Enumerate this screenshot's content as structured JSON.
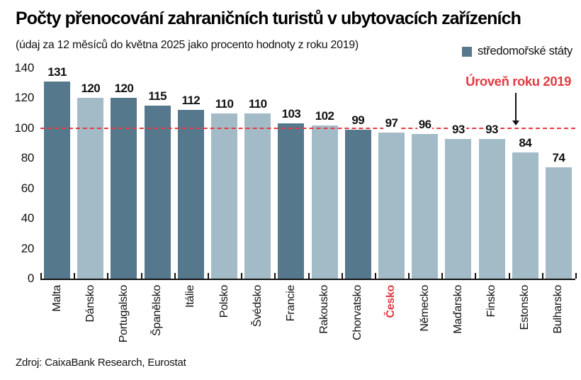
{
  "header": {
    "title": "Počty přenocování zahraničních turistů v ubytovacích zařízeních",
    "subtitle": "(údaj za 12 měsíců do května 2025 jako procento hodnoty z roku 2019)"
  },
  "source": {
    "label": "Zdroj: CaixaBank Research, Eurostat"
  },
  "colors": {
    "mediterranean_bar": "#56788c",
    "other_bar": "#a3bbc7",
    "reference_red": "#e23b42",
    "axis": "#111111",
    "highlight_label": "#e23b42"
  },
  "chart_data": {
    "type": "bar",
    "title": "Počty přenocování zahraničních turistů v ubytovacích zařízeních",
    "subtitle": "(údaj za 12 měsíců do května 2025 jako procento hodnoty z roku 2019)",
    "ylim": [
      0,
      140
    ],
    "yticks": [
      0,
      20,
      40,
      60,
      80,
      100,
      120,
      140
    ],
    "grid": false,
    "legend_position": "top-right",
    "legend": [
      {
        "label": "středomořské státy",
        "color": "#56788c"
      }
    ],
    "reference_line": {
      "value": 100,
      "label": "Úroveň roku 2019",
      "color": "#e23b42",
      "style": "dashed"
    },
    "bars": [
      {
        "label": "Malta",
        "value": 131,
        "mediterranean": true,
        "highlight": false
      },
      {
        "label": "Dánsko",
        "value": 120,
        "mediterranean": false,
        "highlight": false
      },
      {
        "label": "Portugalsko",
        "value": 120,
        "mediterranean": true,
        "highlight": false
      },
      {
        "label": "Španělsko",
        "value": 115,
        "mediterranean": true,
        "highlight": false
      },
      {
        "label": "Itálie",
        "value": 112,
        "mediterranean": true,
        "highlight": false
      },
      {
        "label": "Polsko",
        "value": 110,
        "mediterranean": false,
        "highlight": false
      },
      {
        "label": "Švédsko",
        "value": 110,
        "mediterranean": false,
        "highlight": false
      },
      {
        "label": "Francie",
        "value": 103,
        "mediterranean": true,
        "highlight": false
      },
      {
        "label": "Rakousko",
        "value": 102,
        "mediterranean": false,
        "highlight": false
      },
      {
        "label": "Chorvatsko",
        "value": 99,
        "mediterranean": true,
        "highlight": false
      },
      {
        "label": "Česko",
        "value": 97,
        "mediterranean": false,
        "highlight": true
      },
      {
        "label": "Německo",
        "value": 96,
        "mediterranean": false,
        "highlight": false
      },
      {
        "label": "Maďarsko",
        "value": 93,
        "mediterranean": false,
        "highlight": false
      },
      {
        "label": "Finsko",
        "value": 93,
        "mediterranean": false,
        "highlight": false
      },
      {
        "label": "Estonsko",
        "value": 84,
        "mediterranean": false,
        "highlight": false
      },
      {
        "label": "Bulharsko",
        "value": 74,
        "mediterranean": false,
        "highlight": false
      }
    ]
  }
}
